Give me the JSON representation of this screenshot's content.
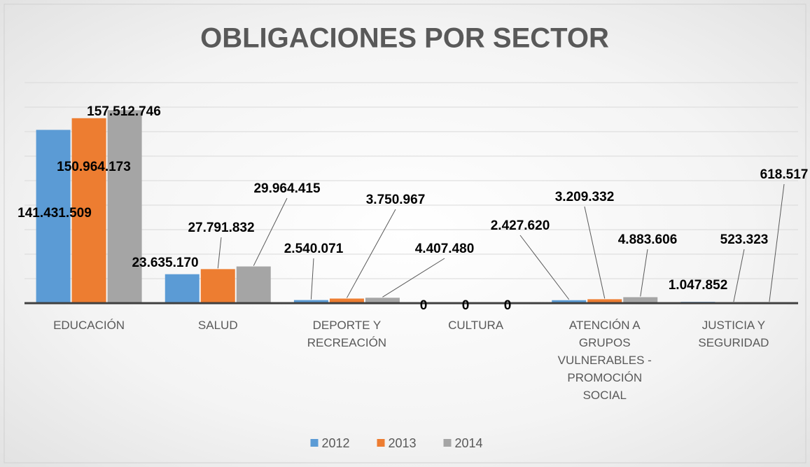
{
  "chart_data": {
    "type": "bar",
    "title": "OBLIGACIONES POR SECTOR",
    "categories": [
      "EDUCACIÓN",
      "SALUD",
      "DEPORTE Y RECREACIÓN",
      "CULTURA",
      "ATENCIÓN A GRUPOS VULNERABLES - PROMOCIÓN SOCIAL",
      "JUSTICIA Y SEGURIDAD"
    ],
    "series": [
      {
        "name": "2012",
        "color": "#5b9bd5",
        "values": [
          141431509,
          23635170,
          2540071,
          0,
          2427620,
          1047852
        ],
        "value_labels": [
          "141.431.509",
          "23.635.170",
          "2.540.071",
          "0",
          "2.427.620",
          "1.047.852"
        ]
      },
      {
        "name": "2013",
        "color": "#ed7d31",
        "values": [
          150964173,
          27791832,
          3750967,
          0,
          3209332,
          523323
        ],
        "value_labels": [
          "150.964.173",
          "27.791.832",
          "3.750.967",
          "0",
          "3.209.332",
          "523.323"
        ]
      },
      {
        "name": "2014",
        "color": "#a5a5a5",
        "values": [
          157512746,
          29964415,
          4407480,
          0,
          4883606,
          618517
        ],
        "value_labels": [
          "157.512.746",
          "29.964.415",
          "4.407.480",
          "0",
          "4.883.606",
          "618.517"
        ]
      }
    ],
    "ylim": [
      0,
      180000000
    ],
    "yticks": [
      0,
      20000000,
      40000000,
      60000000,
      80000000,
      100000000,
      120000000,
      140000000,
      160000000,
      180000000
    ],
    "grid": true,
    "legend": "bottom"
  }
}
